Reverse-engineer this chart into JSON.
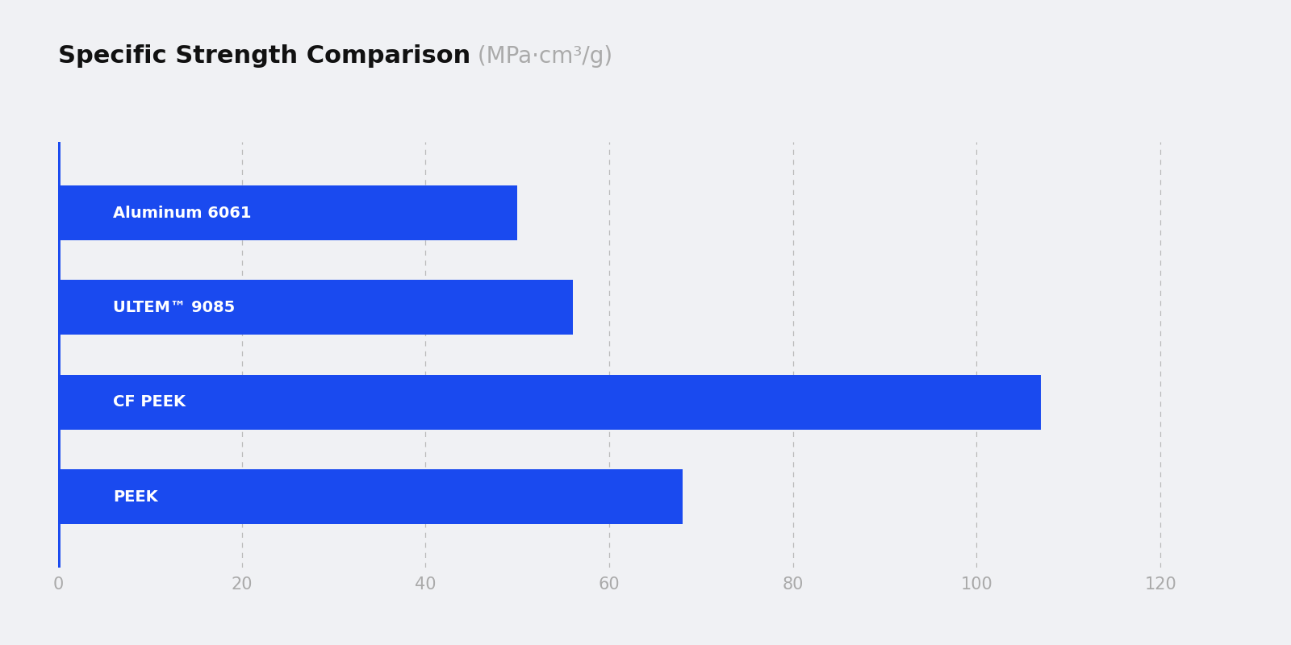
{
  "title_bold": "Specific Strength Comparison",
  "title_units": " (MPa·cm³/g)",
  "background_color": "#f0f1f4",
  "bar_color": "#1a4aef",
  "axis_line_color": "#1a4aef",
  "grid_color": "#bbbbbb",
  "tick_label_color": "#aaaaaa",
  "label_color": "#ffffff",
  "categories": [
    "Aluminum 6061",
    "ULTEM™ 9085",
    "CF PEEK",
    "PEEK"
  ],
  "values": [
    50,
    56,
    107,
    68
  ],
  "xlim": [
    0,
    130
  ],
  "xticks": [
    0,
    20,
    40,
    60,
    80,
    100,
    120
  ],
  "bar_height": 0.58,
  "title_fontsize": 22,
  "units_fontsize": 20,
  "label_fontsize": 14,
  "tick_fontsize": 15
}
